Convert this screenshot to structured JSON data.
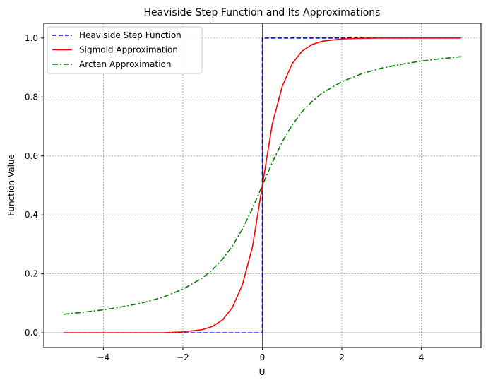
{
  "chart_data": {
    "type": "line",
    "title": "Heaviside Step Function and Its Approximations",
    "xlabel": "U",
    "ylabel": "Function Value",
    "xlim": [
      -5.5,
      5.5
    ],
    "ylim": [
      -0.05,
      1.05
    ],
    "xticks": [
      -4,
      -2,
      0,
      2,
      4
    ],
    "xtick_labels": [
      "−4",
      "−2",
      "0",
      "2",
      "4"
    ],
    "yticks": [
      0.0,
      0.2,
      0.4,
      0.6,
      0.8,
      1.0
    ],
    "ytick_labels": [
      "0.0",
      "0.2",
      "0.4",
      "0.6",
      "0.8",
      "1.0"
    ],
    "grid": true,
    "reference_lines": {
      "horizontal_y": 0,
      "vertical_x": 0
    },
    "legend_position": "top-left",
    "series": [
      {
        "name": "Heaviside Step Function",
        "color": "#0000ff",
        "style": "dashed",
        "x": [
          -5,
          0,
          0,
          5
        ],
        "y": [
          0,
          0,
          1,
          1
        ]
      },
      {
        "name": "Sigmoid Approximation",
        "color": "#ff0000",
        "style": "solid",
        "x": [
          -5,
          -4,
          -3,
          -2.5,
          -2,
          -1.5,
          -1.25,
          -1,
          -0.75,
          -0.5,
          -0.25,
          0,
          0.25,
          0.5,
          0.75,
          1,
          1.25,
          1.5,
          2,
          2.5,
          3,
          4,
          5
        ],
        "y": [
          0.0,
          0.0,
          0.0,
          0.0,
          0.003,
          0.011,
          0.022,
          0.044,
          0.087,
          0.164,
          0.291,
          0.5,
          0.709,
          0.836,
          0.913,
          0.956,
          0.978,
          0.989,
          0.997,
          0.999,
          1.0,
          1.0,
          1.0
        ]
      },
      {
        "name": "Arctan Approximation",
        "color": "#008000",
        "style": "dashdot",
        "x": [
          -5,
          -4.5,
          -4,
          -3.5,
          -3,
          -2.5,
          -2,
          -1.5,
          -1.25,
          -1,
          -0.75,
          -0.5,
          -0.25,
          0,
          0.25,
          0.5,
          0.75,
          1,
          1.25,
          1.5,
          2,
          2.5,
          3,
          3.5,
          4,
          4.5,
          5
        ],
        "y": [
          0.063,
          0.07,
          0.078,
          0.089,
          0.102,
          0.121,
          0.148,
          0.187,
          0.215,
          0.25,
          0.295,
          0.352,
          0.422,
          0.5,
          0.578,
          0.648,
          0.705,
          0.75,
          0.785,
          0.813,
          0.852,
          0.879,
          0.898,
          0.911,
          0.922,
          0.93,
          0.937
        ]
      }
    ]
  }
}
